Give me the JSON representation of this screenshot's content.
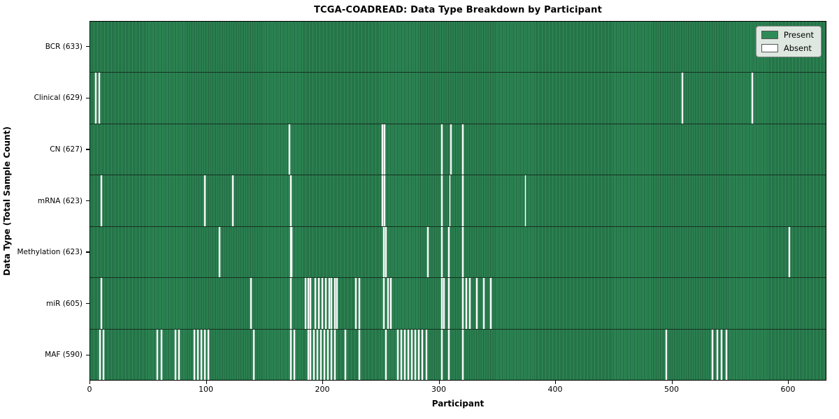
{
  "figure": {
    "title": "TCGA-COADREAD: Data Type Breakdown by Participant",
    "xlabel": "Participant",
    "ylabel": "Data Type (Total Sample Count)"
  },
  "legend": {
    "items": [
      {
        "label": "Present",
        "color": "#2e8b57"
      },
      {
        "label": "Absent",
        "color": "#ffffff"
      }
    ]
  },
  "chart_data": {
    "type": "heatmap",
    "title": "TCGA-COADREAD: Data Type Breakdown by Participant",
    "xlabel": "Participant",
    "ylabel": "Data Type (Total Sample Count)",
    "legend_position": "upper right",
    "legend_entries": [
      "Present",
      "Absent"
    ],
    "colors": {
      "present": "#2e8b57",
      "absent": "#ffffff"
    },
    "n_participants": 633,
    "xlim": [
      0,
      633
    ],
    "x_ticks": [
      0,
      100,
      200,
      300,
      400,
      500,
      600
    ],
    "rows": [
      {
        "label": "BCR",
        "total": 633,
        "display": "BCR (633)",
        "absent": []
      },
      {
        "label": "Clinical",
        "total": 629,
        "display": "Clinical (629)",
        "absent": [
          4,
          7,
          509,
          569
        ]
      },
      {
        "label": "CN",
        "total": 627,
        "display": "CN (627)",
        "absent": [
          171,
          251,
          253,
          302,
          310,
          320
        ]
      },
      {
        "label": "mRNA",
        "total": 623,
        "display": "mRNA (623)",
        "absent": [
          9,
          98,
          122,
          172,
          251,
          253,
          302,
          309,
          320,
          374
        ]
      },
      {
        "label": "Methylation",
        "total": 623,
        "display": "Methylation (623)",
        "absent": [
          111,
          172,
          173,
          252,
          254,
          290,
          302,
          308,
          320,
          601
        ]
      },
      {
        "label": "miR",
        "total": 605,
        "display": "miR (605)",
        "absent": [
          9,
          138,
          172,
          185,
          187,
          189,
          193,
          196,
          199,
          202,
          205,
          207,
          210,
          212,
          228,
          231,
          252,
          256,
          258,
          302,
          304,
          308,
          320,
          323,
          326,
          332,
          338,
          344
        ]
      },
      {
        "label": "MAF",
        "total": 590,
        "display": "MAF (590)",
        "absent": [
          8,
          11,
          57,
          61,
          73,
          76,
          89,
          92,
          95,
          98,
          101,
          140,
          172,
          175,
          187,
          189,
          192,
          195,
          198,
          201,
          204,
          207,
          210,
          219,
          231,
          254,
          264,
          267,
          270,
          273,
          276,
          279,
          282,
          285,
          289,
          302,
          308,
          320,
          495,
          535,
          539,
          543,
          547
        ]
      }
    ]
  }
}
